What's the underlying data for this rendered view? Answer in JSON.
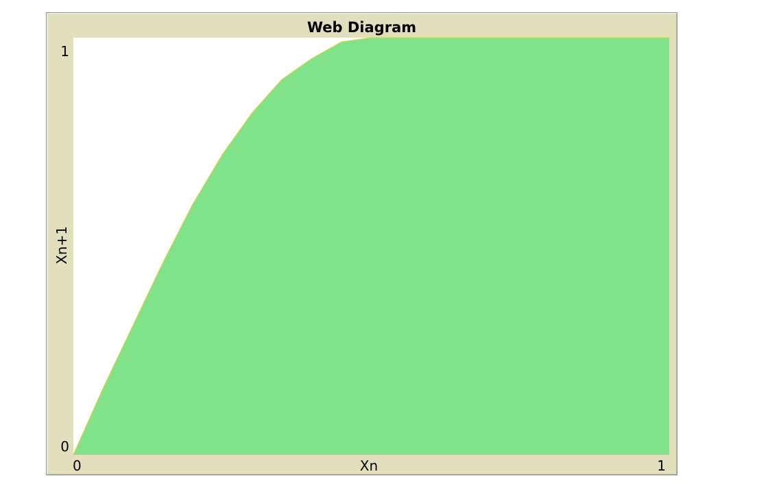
{
  "plot": {
    "title": "Web Diagram"
  },
  "chart_data": {
    "type": "area",
    "title": "Web Diagram",
    "xlabel": "Xn",
    "ylabel": "Xn+1",
    "xlim": [
      0,
      1
    ],
    "ylim": [
      0,
      1
    ],
    "x_ticks": [
      "0",
      "1"
    ],
    "y_ticks": [
      "0",
      "1"
    ],
    "grid": false,
    "series": [
      {
        "x": [
          0.0,
          0.05,
          0.1,
          0.15,
          0.2,
          0.25,
          0.3,
          0.35,
          0.4,
          0.45,
          0.5,
          0.55,
          0.6,
          0.65,
          0.7,
          0.75,
          0.8,
          0.85,
          0.9,
          0.95,
          1.0
        ],
        "y": [
          0.0,
          0.16,
          0.31,
          0.46,
          0.6,
          0.72,
          0.82,
          0.9,
          0.95,
          0.99,
          1.0,
          1.0,
          1.0,
          1.0,
          1.0,
          1.0,
          1.0,
          1.0,
          1.0,
          1.0,
          1.0
        ],
        "fill_color": "#80e38a",
        "line_color": "#d9d640"
      }
    ],
    "background_color": "#ffffff",
    "frame_color": "#e2e0bc"
  }
}
